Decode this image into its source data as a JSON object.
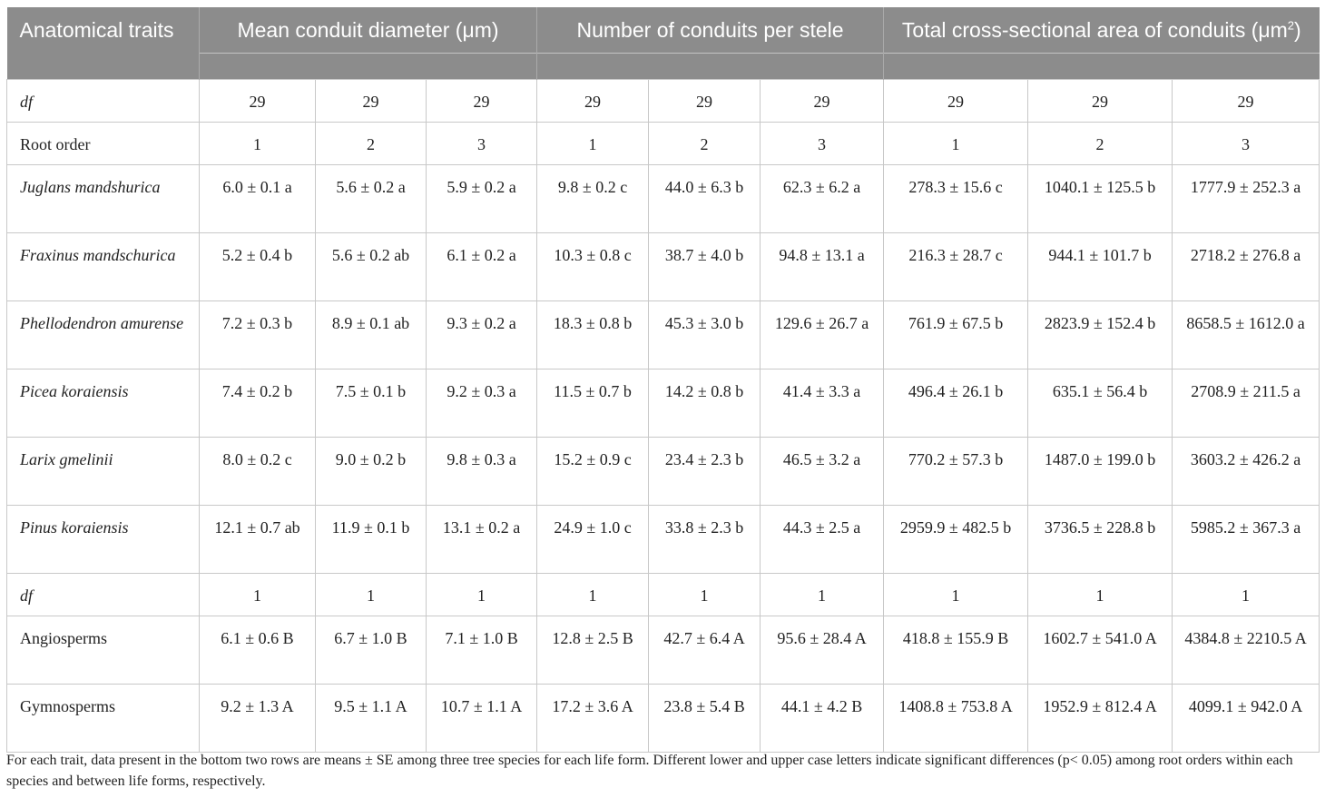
{
  "header": {
    "col0": "Anatomical traits",
    "group1": "Mean conduit diameter (μm)",
    "group2": "Number of conduits per stele",
    "group3_main": "Total cross-sectional area of conduits (μm",
    "group3_sup": "2",
    "group3_close": ")"
  },
  "rows": [
    {
      "label": "df",
      "italic": true,
      "size": "r1",
      "cells": [
        "29",
        "29",
        "29",
        "29",
        "29",
        "29",
        "29",
        "29",
        "29"
      ]
    },
    {
      "label": "Root order",
      "italic": false,
      "size": "r1",
      "cells": [
        "1",
        "2",
        "3",
        "1",
        "2",
        "3",
        "1",
        "2",
        "3"
      ]
    },
    {
      "label": "Juglans mandshurica",
      "italic": true,
      "size": "r2",
      "cells": [
        "6.0 ± 0.1 a",
        "5.6 ± 0.2 a",
        "5.9 ± 0.2 a",
        "9.8 ± 0.2 c",
        "44.0 ± 6.3 b",
        "62.3 ± 6.2 a",
        "278.3 ± 15.6 c",
        "1040.1 ± 125.5 b",
        "1777.9 ± 252.3 a"
      ]
    },
    {
      "label": "Fraxinus mandschurica",
      "italic": true,
      "size": "r2",
      "cells": [
        "5.2 ± 0.4 b",
        "5.6 ± 0.2 ab",
        "6.1 ± 0.2 a",
        "10.3 ± 0.8 c",
        "38.7 ± 4.0 b",
        "94.8 ± 13.1 a",
        "216.3 ± 28.7 c",
        "944.1 ± 101.7 b",
        "2718.2 ± 276.8 a"
      ]
    },
    {
      "label": "Phellodendron amurense",
      "italic": true,
      "size": "r2",
      "cells": [
        "7.2 ± 0.3 b",
        "8.9 ± 0.1 ab",
        "9.3 ± 0.2 a",
        "18.3 ± 0.8 b",
        "45.3 ± 3.0 b",
        "129.6 ± 26.7 a",
        "761.9 ± 67.5 b",
        "2823.9 ± 152.4 b",
        "8658.5 ± 1612.0 a"
      ]
    },
    {
      "label": "Picea koraiensis",
      "italic": true,
      "size": "r2",
      "cells": [
        "7.4 ± 0.2 b",
        "7.5 ± 0.1 b",
        "9.2 ± 0.3 a",
        "11.5 ± 0.7 b",
        "14.2 ± 0.8 b",
        "41.4 ± 3.3 a",
        "496.4 ± 26.1 b",
        "635.1 ± 56.4 b",
        "2708.9 ± 211.5 a"
      ]
    },
    {
      "label": "Larix gmelinii",
      "italic": true,
      "size": "r2",
      "cells": [
        "8.0 ± 0.2 c",
        "9.0 ± 0.2 b",
        "9.8 ± 0.3 a",
        "15.2 ± 0.9 c",
        "23.4 ± 2.3 b",
        "46.5 ± 3.2 a",
        "770.2 ± 57.3 b",
        "1487.0 ± 199.0 b",
        "3603.2 ± 426.2 a"
      ]
    },
    {
      "label": "Pinus koraiensis",
      "italic": true,
      "size": "r2",
      "cells": [
        "12.1 ± 0.7 ab",
        "11.9 ± 0.1 b",
        "13.1 ± 0.2 a",
        "24.9 ± 1.0 c",
        "33.8 ± 2.3 b",
        "44.3 ± 2.5 a",
        "2959.9 ± 482.5 b",
        "3736.5 ± 228.8 b",
        "5985.2 ± 367.3 a"
      ]
    },
    {
      "label": "df",
      "italic": true,
      "size": "r1",
      "cells": [
        "1",
        "1",
        "1",
        "1",
        "1",
        "1",
        "1",
        "1",
        "1"
      ]
    },
    {
      "label": "Angiosperms",
      "italic": false,
      "size": "r2",
      "cells": [
        "6.1 ± 0.6 B",
        "6.7 ± 1.0 B",
        "7.1 ± 1.0 B",
        "12.8 ± 2.5 B",
        "42.7 ± 6.4 A",
        "95.6 ± 28.4 A",
        "418.8 ± 155.9 B",
        "1602.7 ± 541.0 A",
        "4384.8 ± 2210.5 A"
      ]
    },
    {
      "label": "Gymnosperms",
      "italic": false,
      "size": "r2",
      "cells": [
        "9.2 ± 1.3 A",
        "9.5 ± 1.1 A",
        "10.7 ± 1.1 A",
        "17.2 ± 3.6 A",
        "23.8 ± 5.4 B",
        "44.1 ± 4.2 B",
        "1408.8 ± 753.8 A",
        "1952.9 ± 812.4 A",
        "4099.1 ± 942.0 A"
      ]
    }
  ],
  "footnote": "For each trait, data present in the bottom two rows are means ± SE among three tree species for each life form. Different lower and upper case letters indicate significant differences (p< 0.05) among root orders within each species and between life forms, respectively."
}
